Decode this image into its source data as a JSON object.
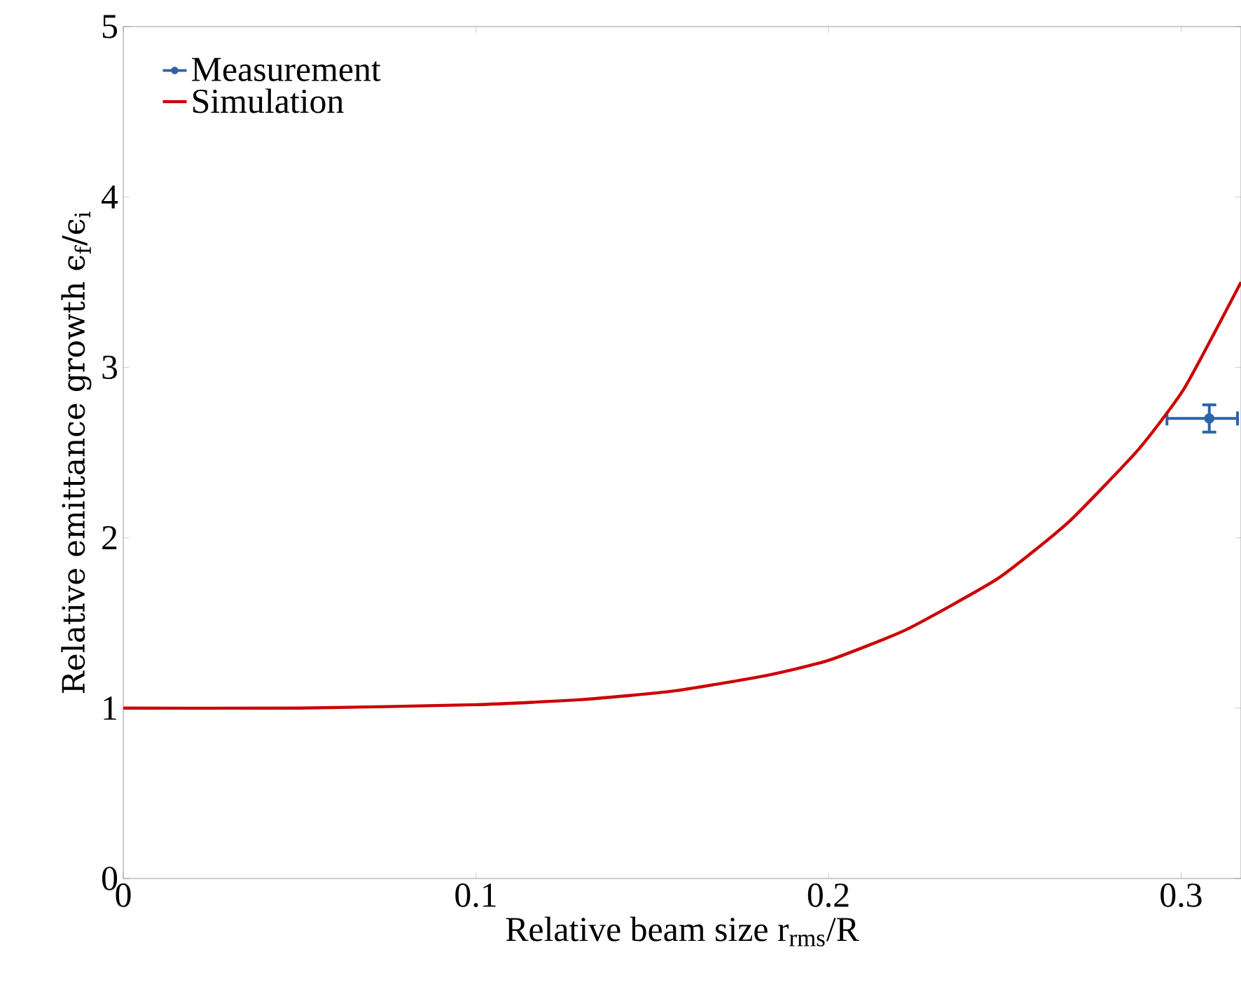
{
  "chart_data": {
    "type": "line",
    "xlabel": "Relative beam size r$_{rms}$/R",
    "ylabel": "Relative emittance growth ϵ$_{f}$/ϵ$_{i}$",
    "xlim": [
      0,
      0.317
    ],
    "ylim": [
      0,
      5
    ],
    "xticks": [
      0,
      0.1,
      0.2,
      0.3
    ],
    "yticks": [
      0,
      1,
      2,
      3,
      4,
      5
    ],
    "legend": "top left",
    "grid": false,
    "series": [
      {
        "name": "Measurement",
        "type": "scatter",
        "color": "#2f63a8",
        "marker": "circle",
        "x": [
          0.308
        ],
        "values": [
          2.7
        ],
        "errors": [
          0.08
        ],
        "xerrors": [
          [
            0.296,
            0.316
          ]
        ]
      },
      {
        "name": "Simulation",
        "color": "#cc0000",
        "marker": "none",
        "line_style": "solid",
        "x": [
          0,
          0.05,
          0.1,
          0.13,
          0.156,
          0.182,
          0.2,
          0.222,
          0.248,
          0.268,
          0.288,
          0.301,
          0.317
        ],
        "values": [
          1.0,
          1.0,
          1.02,
          1.05,
          1.1,
          1.19,
          1.28,
          1.46,
          1.76,
          2.09,
          2.52,
          2.88,
          3.5
        ]
      }
    ]
  }
}
